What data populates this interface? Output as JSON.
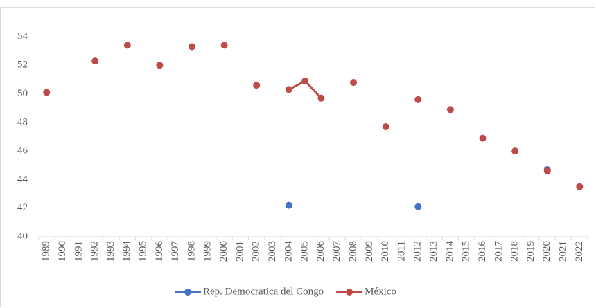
{
  "chart_data": {
    "type": "line",
    "categories": [
      "1989",
      "1990",
      "1991",
      "1992",
      "1993",
      "1994",
      "1995",
      "1996",
      "1997",
      "1998",
      "1999",
      "2000",
      "2001",
      "2002",
      "2003",
      "2004",
      "2005",
      "2006",
      "2007",
      "2008",
      "2009",
      "2010",
      "2011",
      "2012",
      "2013",
      "2014",
      "2015",
      "2016",
      "2017",
      "2018",
      "2019",
      "2020",
      "2021",
      "2022"
    ],
    "series": [
      {
        "name": "Rep. Democratica del Congo",
        "color": "#4472c4",
        "values": [
          null,
          null,
          null,
          null,
          null,
          null,
          null,
          null,
          null,
          null,
          null,
          null,
          null,
          null,
          null,
          42.2,
          null,
          null,
          null,
          null,
          null,
          null,
          null,
          42.1,
          null,
          null,
          null,
          null,
          null,
          null,
          null,
          44.7,
          null,
          null
        ]
      },
      {
        "name": "México",
        "color": "#be4b48",
        "values": [
          50.1,
          null,
          null,
          52.3,
          null,
          53.4,
          null,
          52.0,
          null,
          53.3,
          null,
          53.4,
          null,
          50.6,
          null,
          50.3,
          50.9,
          49.7,
          null,
          50.8,
          null,
          47.7,
          null,
          49.6,
          null,
          48.9,
          null,
          46.9,
          null,
          46.0,
          null,
          44.6,
          null,
          43.5
        ]
      }
    ],
    "ylim": [
      40,
      54
    ],
    "yticks": [
      40,
      42,
      44,
      46,
      48,
      50,
      52,
      54
    ],
    "grid": false,
    "legend": "bottom"
  }
}
